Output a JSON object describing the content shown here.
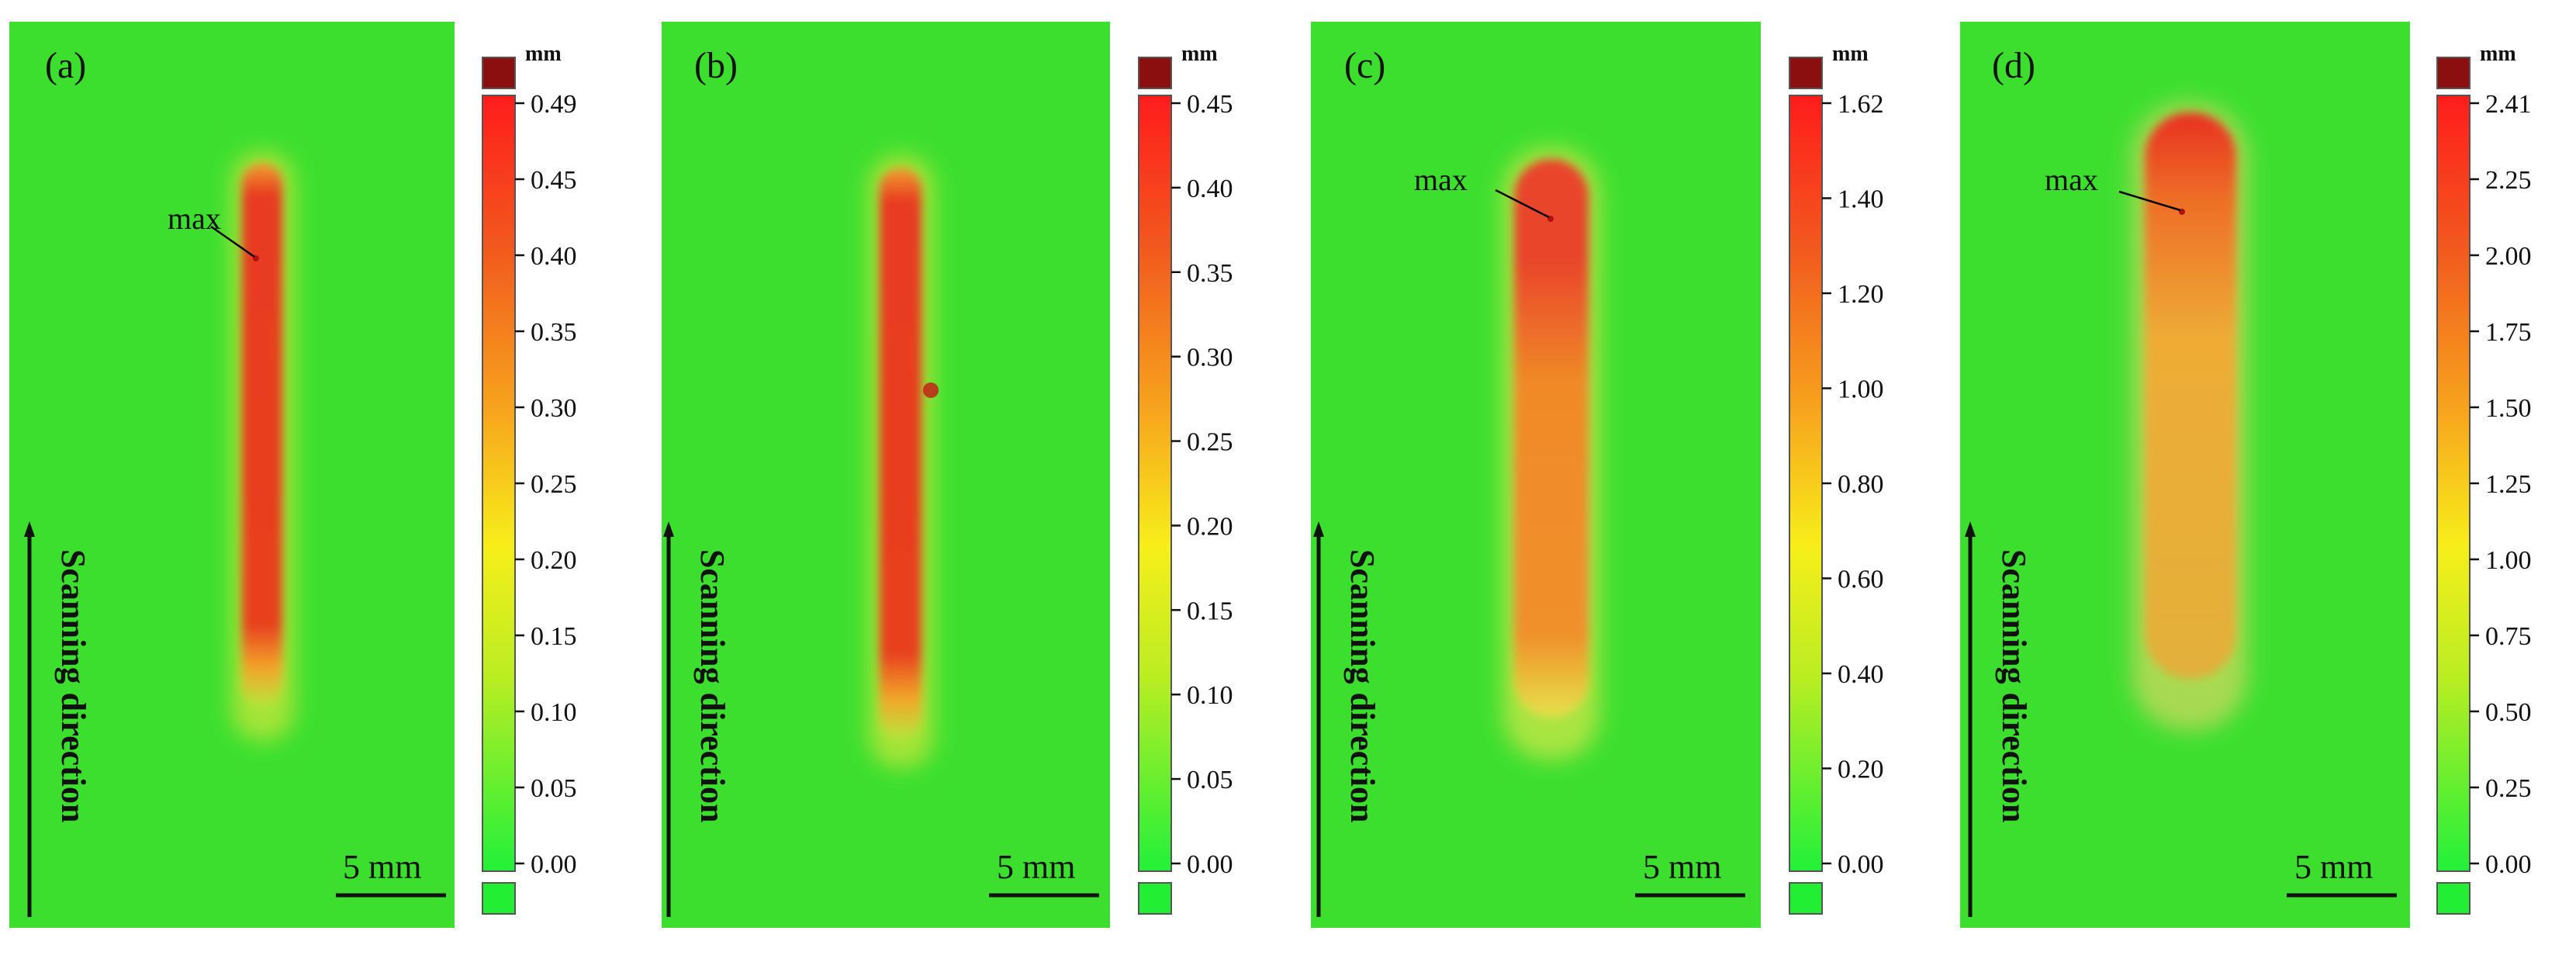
{
  "figure": {
    "panels": [
      {
        "label": "(a)",
        "unit": "mm",
        "ticks": [
          "0.49",
          "0.45",
          "0.40",
          "0.35",
          "0.30",
          "0.25",
          "0.20",
          "0.15",
          "0.10",
          "0.05",
          "0.00"
        ],
        "max_label": "max",
        "show_max": true,
        "scale_bar": "5 mm",
        "direction_label": "Scanning direction",
        "track_shape": "thin-spotted"
      },
      {
        "label": "(b)",
        "unit": "mm",
        "ticks": [
          "0.45",
          "0.40",
          "0.35",
          "0.30",
          "0.25",
          "0.20",
          "0.15",
          "0.10",
          "0.05",
          "0.00"
        ],
        "max_label": "",
        "show_max": false,
        "scale_bar": "5 mm",
        "direction_label": "Scanning direction",
        "track_shape": "thin-spotted"
      },
      {
        "label": "(c)",
        "unit": "mm",
        "ticks": [
          "1.62",
          "1.40",
          "1.20",
          "1.00",
          "0.80",
          "0.60",
          "0.40",
          "0.20",
          "0.00"
        ],
        "max_label": "max",
        "show_max": true,
        "scale_bar": "5 mm",
        "direction_label": "Scanning direction",
        "track_shape": "medium"
      },
      {
        "label": "(d)",
        "unit": "mm",
        "ticks": [
          "2.41",
          "2.25",
          "2.00",
          "1.75",
          "1.50",
          "1.25",
          "1.00",
          "0.75",
          "0.50",
          "0.25",
          "0.00"
        ],
        "max_label": "max",
        "show_max": true,
        "scale_bar": "5 mm",
        "direction_label": "Scanning direction",
        "track_shape": "wide"
      }
    ],
    "colors": {
      "background": "#3ddf2f",
      "bar_top_cap": "#8b0f0f",
      "bar_bottom_cap": "#22ee33",
      "high": "#e8331e",
      "mid": "#f08a1e",
      "low": "#f2e21a"
    }
  }
}
